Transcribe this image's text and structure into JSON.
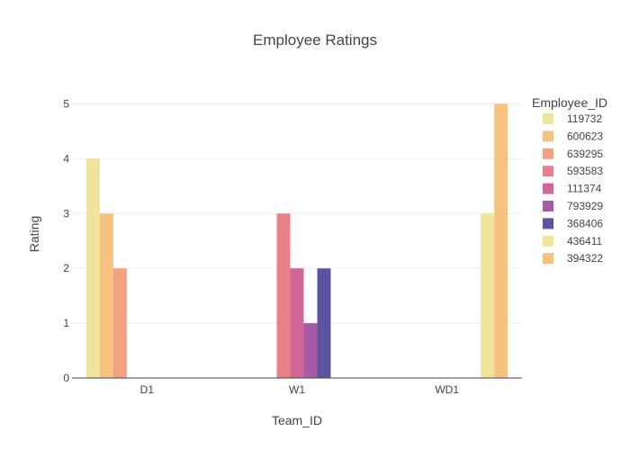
{
  "chart_data": {
    "type": "bar",
    "title": "Employee Ratings",
    "xlabel": "Team_ID",
    "ylabel": "Rating",
    "categories": [
      "D1",
      "W1",
      "WD1"
    ],
    "ylim": [
      0,
      5.5
    ],
    "yticks": [
      0,
      1,
      2,
      3,
      4,
      5
    ],
    "grid": true,
    "legend_title": "Employee_ID",
    "legend_placement": "right",
    "series": [
      {
        "name": "119732",
        "color": "#f0e39b",
        "values": [
          4,
          null,
          null
        ]
      },
      {
        "name": "600623",
        "color": "#f7c17f",
        "values": [
          3,
          null,
          null
        ]
      },
      {
        "name": "639295",
        "color": "#f4a182",
        "values": [
          2,
          null,
          null
        ]
      },
      {
        "name": "593583",
        "color": "#e8808a",
        "values": [
          null,
          3,
          null
        ]
      },
      {
        "name": "111374",
        "color": "#cf6799",
        "values": [
          null,
          2,
          null
        ]
      },
      {
        "name": "793929",
        "color": "#a65ba6",
        "values": [
          null,
          1,
          null
        ]
      },
      {
        "name": "368406",
        "color": "#5d53a3",
        "values": [
          null,
          2,
          null
        ]
      },
      {
        "name": "436411",
        "color": "#f0e39b",
        "values": [
          null,
          null,
          3
        ]
      },
      {
        "name": "394322",
        "color": "#f7c17f",
        "values": [
          null,
          null,
          5
        ]
      }
    ]
  }
}
